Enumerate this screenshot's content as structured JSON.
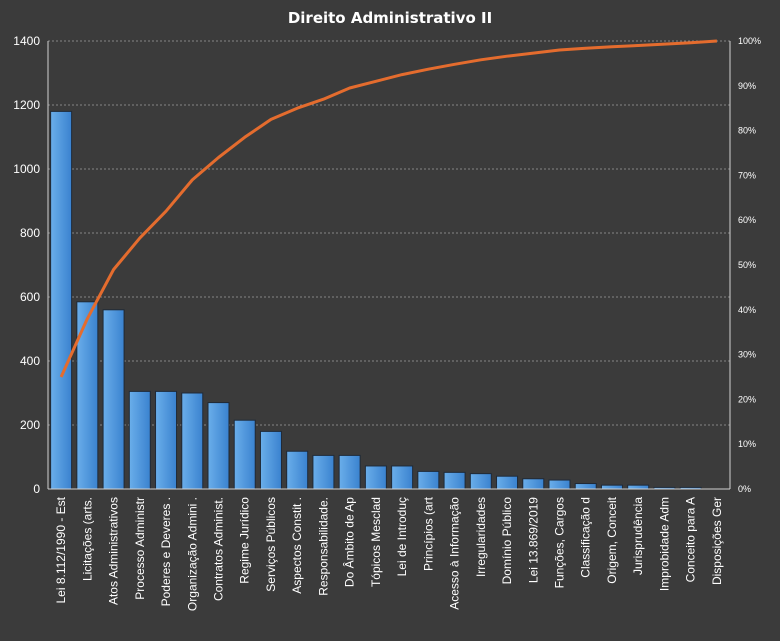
{
  "chart_data": {
    "type": "bar",
    "title": "Direito  Administrativo  II",
    "xlabel": "",
    "ylabel": "",
    "ylim": [
      0,
      1400
    ],
    "y_ticks": [
      0,
      200,
      400,
      600,
      800,
      1000,
      1200,
      1400
    ],
    "y2lim": [
      0,
      100
    ],
    "y2_ticks": [
      "0%",
      "10%",
      "20%",
      "30%",
      "40%",
      "50%",
      "60%",
      "70%",
      "80%",
      "90%",
      "100%"
    ],
    "grid": true,
    "legend": "none",
    "categories": [
      "Lei 8.112/1990 - Est",
      "Licitações (arts.",
      "Atos Administrativos",
      "Processo Administr",
      "Poderes e Deveres .",
      "Organização Admini .",
      "Contratos Administ.",
      "Regime Jurídico",
      "Serviços Públicos",
      "Aspectos Constit .",
      "Responsabilidade.",
      "Do Âmbito de Ap",
      "Tópicos Mesclad",
      "Lei de Introduç",
      "Princípios (art",
      "Acesso à Informação",
      "Irregularidades",
      "Domínio Público",
      "Lei 13.869/2019",
      "Funções, Cargos",
      "Classificação d",
      "Origem, Conceit",
      "Jurisprudência",
      "Improbidade Adm",
      "Conceito para A",
      "Disposições Ger"
    ],
    "series": [
      {
        "type": "bar",
        "axis": "left",
        "values": [
          1180,
          585,
          560,
          305,
          305,
          300,
          270,
          215,
          180,
          118,
          105,
          105,
          72,
          72,
          55,
          52,
          48,
          40,
          32,
          28,
          17,
          12,
          12,
          5,
          5,
          0
        ]
      },
      {
        "type": "line",
        "axis": "right",
        "unit": "%",
        "values": [
          25,
          38,
          49,
          56,
          62,
          69,
          74,
          78.5,
          82.5,
          85,
          87,
          89.5,
          91,
          92.5,
          93.7,
          94.8,
          95.8,
          96.6,
          97.3,
          98,
          98.4,
          98.7,
          99,
          99.3,
          99.6,
          100
        ]
      }
    ],
    "colors": {
      "bar": "#3c87d6",
      "line": "#e46c2e",
      "background": "#3b3b3b",
      "text": "#ffffff"
    }
  }
}
